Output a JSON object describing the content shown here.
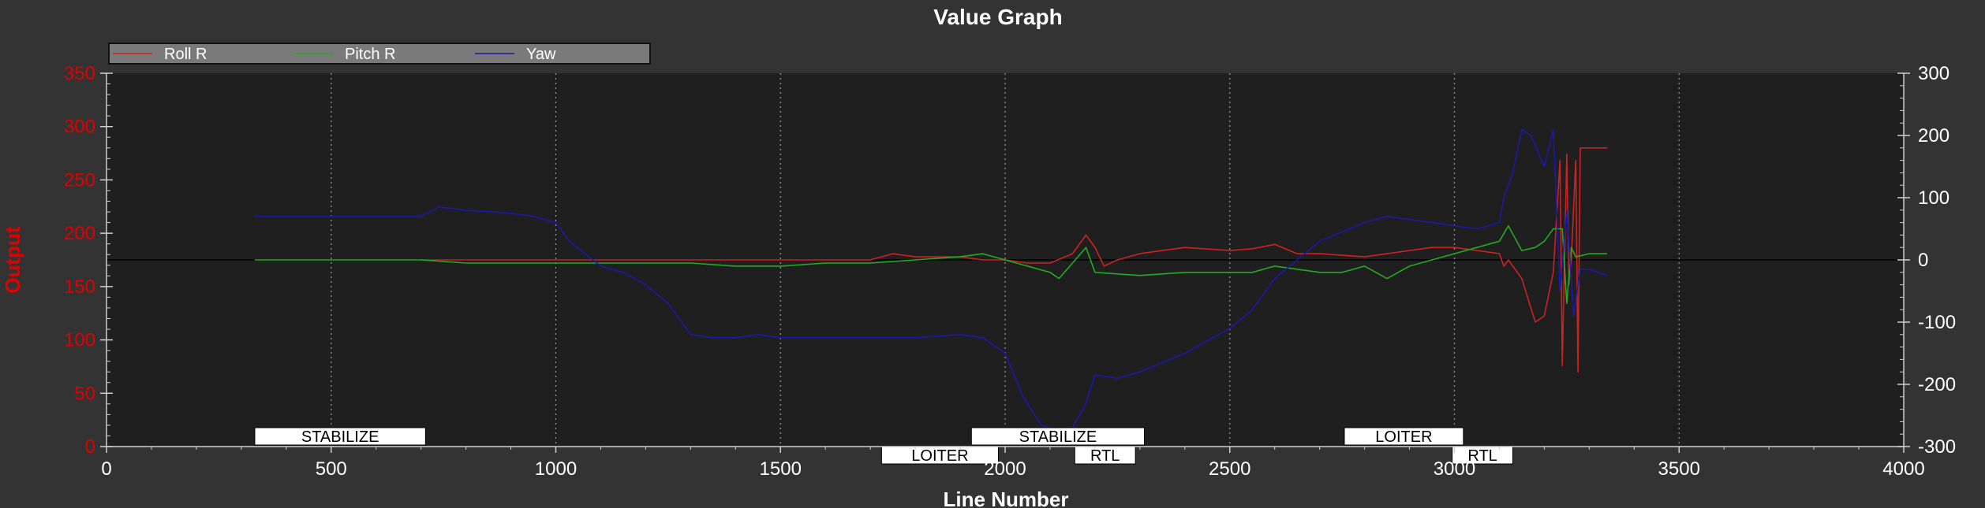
{
  "chart_data": {
    "type": "line",
    "title": "Value Graph",
    "xlabel": "Line Number",
    "ylabel": "Output",
    "xlim": [
      0,
      4000
    ],
    "ylim_left": [
      0,
      350
    ],
    "ylim_right": [
      -300,
      300
    ],
    "x_ticks": [
      "0",
      "500",
      "1000",
      "1500",
      "2000",
      "2500",
      "3000",
      "3500",
      "4000"
    ],
    "y_left_ticks": [
      "0",
      "50",
      "100",
      "150",
      "200",
      "250",
      "300",
      "350"
    ],
    "y_right_ticks": [
      "-300",
      "-200",
      "-100",
      "0",
      "100",
      "200",
      "300"
    ],
    "grid": "vertical dotted",
    "legend_position": "top-left",
    "series": [
      {
        "name": "Roll R",
        "axis": "right",
        "color": "#cc2222",
        "x": [
          700,
          800,
          900,
          1000,
          1100,
          1200,
          1300,
          1400,
          1500,
          1600,
          1700,
          1750,
          1800,
          1900,
          1950,
          2000,
          2050,
          2100,
          2150,
          2180,
          2200,
          2220,
          2250,
          2300,
          2350,
          2400,
          2500,
          2550,
          2600,
          2650,
          2700,
          2800,
          2850,
          2900,
          2950,
          3000,
          3050,
          3100,
          3110,
          3120,
          3150,
          3180,
          3200,
          3220,
          3235,
          3240,
          3250,
          3255,
          3260,
          3270,
          3275,
          3280,
          3300,
          3340
        ],
        "y": [
          0,
          0,
          0,
          0,
          0,
          0,
          0,
          0,
          0,
          0,
          0,
          10,
          5,
          5,
          0,
          0,
          -5,
          -5,
          10,
          40,
          20,
          -10,
          0,
          10,
          15,
          20,
          15,
          18,
          25,
          10,
          10,
          5,
          10,
          15,
          20,
          20,
          15,
          10,
          -10,
          0,
          -30,
          -100,
          -90,
          -20,
          160,
          -170,
          170,
          -40,
          0,
          160,
          -180,
          180,
          180,
          180
        ]
      },
      {
        "name": "Pitch R",
        "axis": "right",
        "color": "#22aa22",
        "x": [
          330,
          500,
          700,
          800,
          900,
          1000,
          1100,
          1200,
          1300,
          1400,
          1500,
          1600,
          1700,
          1800,
          1900,
          1950,
          2000,
          2050,
          2100,
          2120,
          2150,
          2180,
          2200,
          2300,
          2400,
          2500,
          2550,
          2600,
          2700,
          2750,
          2800,
          2850,
          2900,
          3000,
          3050,
          3100,
          3120,
          3150,
          3180,
          3200,
          3220,
          3240,
          3250,
          3260,
          3270,
          3300,
          3340
        ],
        "y": [
          0,
          0,
          0,
          -5,
          -5,
          -5,
          -5,
          -5,
          -5,
          -10,
          -10,
          -5,
          -5,
          0,
          5,
          10,
          0,
          -10,
          -20,
          -30,
          -5,
          20,
          -20,
          -25,
          -20,
          -20,
          -20,
          -10,
          -20,
          -20,
          -10,
          -30,
          -10,
          10,
          20,
          30,
          55,
          15,
          20,
          30,
          50,
          50,
          -70,
          20,
          5,
          10,
          10
        ]
      },
      {
        "name": "Yaw",
        "axis": "right",
        "color": "#1a1aaa",
        "x": [
          330,
          500,
          700,
          740,
          800,
          900,
          950,
          1000,
          1030,
          1100,
          1150,
          1200,
          1250,
          1300,
          1350,
          1400,
          1450,
          1500,
          1600,
          1700,
          1800,
          1900,
          1950,
          2000,
          2040,
          2080,
          2100,
          2130,
          2150,
          2180,
          2200,
          2250,
          2300,
          2400,
          2500,
          2550,
          2600,
          2700,
          2800,
          2850,
          2900,
          2950,
          3000,
          3050,
          3100,
          3110,
          3130,
          3150,
          3170,
          3200,
          3220,
          3235,
          3250,
          3265,
          3280,
          3300,
          3340
        ],
        "y": [
          70,
          70,
          70,
          85,
          80,
          75,
          70,
          60,
          30,
          -10,
          -20,
          -40,
          -70,
          -120,
          -125,
          -125,
          -120,
          -125,
          -125,
          -125,
          -125,
          -120,
          -125,
          -150,
          -220,
          -265,
          -270,
          -270,
          -270,
          -230,
          -185,
          -190,
          -180,
          -150,
          -110,
          -80,
          -30,
          30,
          60,
          70,
          65,
          60,
          55,
          50,
          60,
          100,
          140,
          210,
          200,
          150,
          210,
          -50,
          80,
          -90,
          -15,
          -15,
          -25
        ]
      }
    ],
    "modes": [
      {
        "label": "STABILIZE",
        "x0": 330,
        "x1": 710,
        "row": 0
      },
      {
        "label": "LOITER",
        "x0": 1725,
        "x1": 1985,
        "row": 1
      },
      {
        "label": "STABILIZE",
        "x0": 1925,
        "x1": 2310,
        "row": 0
      },
      {
        "label": "RTL",
        "x0": 2155,
        "x1": 2290,
        "row": 1
      },
      {
        "label": "LOITER",
        "x0": 2755,
        "x1": 3020,
        "row": 0
      },
      {
        "label": "RTL",
        "x0": 2995,
        "x1": 3130,
        "row": 1
      }
    ]
  }
}
